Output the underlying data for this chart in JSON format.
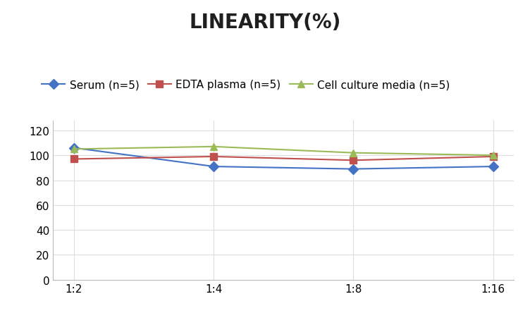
{
  "title": "LINEARITY(%)",
  "x_labels": [
    "1:2",
    "1:4",
    "1:8",
    "1:16"
  ],
  "series": [
    {
      "label": "Serum (n=5)",
      "values": [
        106,
        91,
        89,
        91
      ],
      "color": "#4472C4",
      "marker": "D",
      "marker_fill": "#4472C4"
    },
    {
      "label": "EDTA plasma (n=5)",
      "values": [
        97,
        99,
        96,
        99
      ],
      "color": "#C0504D",
      "marker": "s",
      "marker_fill": "#C0504D"
    },
    {
      "label": "Cell culture media (n=5)",
      "values": [
        105,
        107,
        102,
        100
      ],
      "color": "#9BBB59",
      "marker": "^",
      "marker_fill": "#9BBB59"
    }
  ],
  "ylim": [
    0,
    128
  ],
  "yticks": [
    0,
    20,
    40,
    60,
    80,
    100,
    120
  ],
  "background_color": "#FFFFFF",
  "title_fontsize": 20,
  "legend_fontsize": 11,
  "tick_fontsize": 11
}
